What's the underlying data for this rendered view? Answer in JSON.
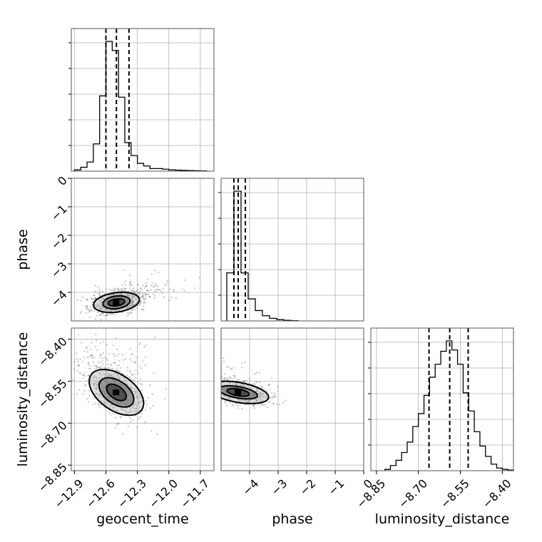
{
  "chart_data": {
    "type": "corner",
    "parameters": [
      {
        "name": "geocent_time",
        "range": [
          -12.93,
          -11.57
        ],
        "ticks": [
          -12.9,
          -12.6,
          -12.3,
          -12.0,
          -11.7
        ],
        "tick_labels": [
          "−12.9",
          "−12.6",
          "−12.3",
          "−12.0",
          "−11.7"
        ],
        "quantiles": [
          -12.6,
          -12.5,
          -12.38
        ],
        "histogram": {
          "bin_edges": [
            -12.9,
            -12.84,
            -12.78,
            -12.72,
            -12.66,
            -12.6,
            -12.54,
            -12.48,
            -12.42,
            -12.36,
            -12.3,
            -12.24,
            -12.18,
            -12.12,
            -12.06,
            -12.0,
            -11.94,
            -11.88,
            -11.82,
            -11.76,
            -11.7,
            -11.64
          ],
          "counts": [
            0.01,
            0.03,
            0.07,
            0.21,
            0.58,
            1.0,
            0.93,
            0.57,
            0.22,
            0.12,
            0.06,
            0.04,
            0.02,
            0.02,
            0.015,
            0.01,
            0.008,
            0.006,
            0.005,
            0.003,
            0.002
          ]
        }
      },
      {
        "name": "phase",
        "range": [
          -5.0,
          0.0
        ],
        "ticks": [
          -4,
          -3,
          -2,
          -1,
          0
        ],
        "tick_labels": [
          "−4",
          "−3",
          "−2",
          "−1",
          "0"
        ],
        "quantiles": [
          -4.55,
          -4.4,
          -4.15
        ],
        "histogram": {
          "bin_edges": [
            -4.8,
            -4.55,
            -4.3,
            -4.05,
            -3.8,
            -3.55,
            -3.3,
            -3.05,
            -2.8,
            -2.55,
            -2.3
          ],
          "counts": [
            0.37,
            1.0,
            0.37,
            0.17,
            0.08,
            0.04,
            0.02,
            0.01,
            0.005,
            0.002
          ]
        }
      },
      {
        "name": "luminosity_distance",
        "range": [
          -8.87,
          -8.36
        ],
        "ticks": [
          -8.85,
          -8.7,
          -8.55,
          -8.4
        ],
        "tick_labels": [
          "−8.85",
          "−8.70",
          "−8.55",
          "−8.40"
        ],
        "quantiles": [
          -8.662,
          -8.588,
          -8.522
        ],
        "histogram": {
          "bin_edges": [
            -8.82,
            -8.8,
            -8.78,
            -8.76,
            -8.74,
            -8.72,
            -8.7,
            -8.68,
            -8.66,
            -8.64,
            -8.62,
            -8.6,
            -8.58,
            -8.56,
            -8.54,
            -8.52,
            -8.5,
            -8.48,
            -8.46,
            -8.44,
            -8.42,
            -8.4,
            -8.38,
            -8.36
          ],
          "counts": [
            0.01,
            0.04,
            0.08,
            0.14,
            0.22,
            0.34,
            0.44,
            0.58,
            0.72,
            0.82,
            0.92,
            1.0,
            0.93,
            0.82,
            0.6,
            0.46,
            0.3,
            0.19,
            0.11,
            0.05,
            0.02,
            0.01,
            0.005
          ]
        }
      }
    ],
    "joint_distributions": [
      {
        "x": "geocent_time",
        "y": "phase",
        "center": [
          -12.5,
          -4.35
        ],
        "contours": [
          {
            "rx": 0.08,
            "ry": 0.12,
            "angle": 8
          },
          {
            "rx": 0.13,
            "ry": 0.22,
            "angle": 8
          },
          {
            "rx": 0.22,
            "ry": 0.34,
            "angle": 8
          }
        ]
      },
      {
        "x": "geocent_time",
        "y": "luminosity_distance",
        "center": [
          -12.5,
          -8.59
        ],
        "contours": [
          {
            "rx": 0.06,
            "ry": 0.04,
            "angle": 55
          },
          {
            "rx": 0.11,
            "ry": 0.07,
            "angle": 55
          },
          {
            "rx": 0.17,
            "ry": 0.11,
            "angle": 55
          }
        ]
      },
      {
        "x": "phase",
        "y": "luminosity_distance",
        "center": [
          -4.4,
          -8.59
        ],
        "contours": [
          {
            "rx": 0.12,
            "ry": 0.04,
            "angle": 80
          },
          {
            "rx": 0.2,
            "ry": 0.07,
            "angle": 80
          },
          {
            "rx": 0.35,
            "ry": 0.11,
            "angle": 80
          }
        ]
      }
    ],
    "grid": true
  }
}
